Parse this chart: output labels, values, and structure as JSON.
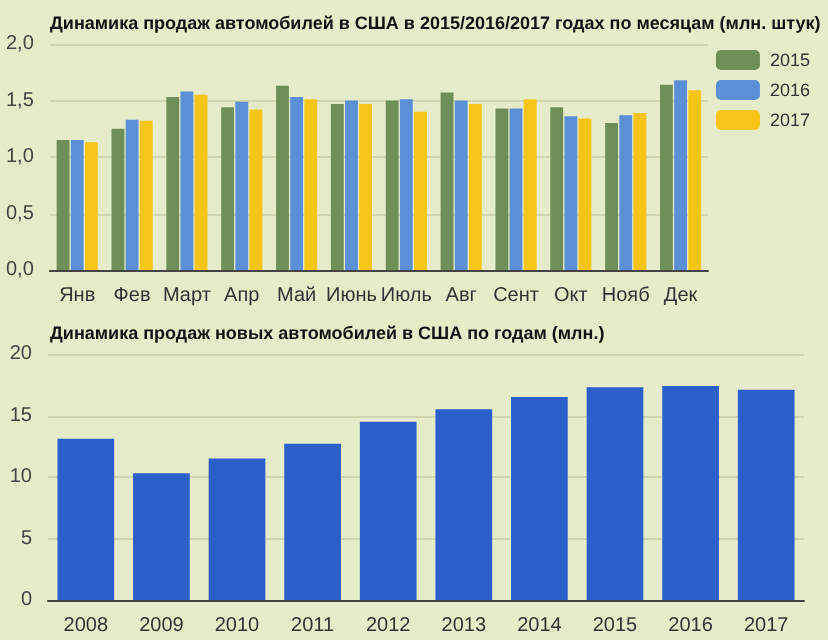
{
  "chart_data": [
    {
      "type": "bar",
      "title": "Динамика продаж автомобилей в США в 2015/2016/2017 годах по месяцам (млн. штук)",
      "categories": [
        "Янв",
        "Фев",
        "Март",
        "Апр",
        "Май",
        "Июнь",
        "Июль",
        "Авг",
        "Сент",
        "Окт",
        "Нояб",
        "Дек"
      ],
      "series": [
        {
          "name": "2015",
          "color": "#6e8f5a",
          "values": [
            1.15,
            1.25,
            1.53,
            1.44,
            1.63,
            1.47,
            1.5,
            1.57,
            1.43,
            1.44,
            1.3,
            1.64
          ]
        },
        {
          "name": "2016",
          "color": "#5b8fd6",
          "values": [
            1.15,
            1.33,
            1.58,
            1.49,
            1.53,
            1.5,
            1.51,
            1.5,
            1.43,
            1.36,
            1.37,
            1.68
          ]
        },
        {
          "name": "2017",
          "color": "#f5c518",
          "values": [
            1.13,
            1.32,
            1.55,
            1.42,
            1.51,
            1.47,
            1.4,
            1.47,
            1.51,
            1.34,
            1.39,
            1.59
          ]
        }
      ],
      "ylim": [
        0,
        2
      ],
      "yticks": [
        {
          "value": 0,
          "label": "0,0"
        },
        {
          "value": 0.5,
          "label": "0,5"
        },
        {
          "value": 1,
          "label": "1,0"
        },
        {
          "value": 1.5,
          "label": "1,5"
        },
        {
          "value": 2,
          "label": "2,0"
        }
      ],
      "grid": "y",
      "legend": "top right"
    },
    {
      "type": "bar",
      "title": "Динамика продаж новых автомобилей в США по годам (млн.)",
      "categories": [
        "2008",
        "2009",
        "2010",
        "2011",
        "2012",
        "2013",
        "2014",
        "2015",
        "2016",
        "2017"
      ],
      "series": [
        {
          "color": "#2b5fc9",
          "values": [
            13.1,
            10.3,
            11.5,
            12.7,
            14.5,
            15.5,
            16.5,
            17.3,
            17.4,
            17.1
          ]
        }
      ],
      "ylim": [
        0,
        20
      ],
      "yticks": [
        0,
        5,
        10,
        15,
        20
      ],
      "grid": "y"
    }
  ]
}
